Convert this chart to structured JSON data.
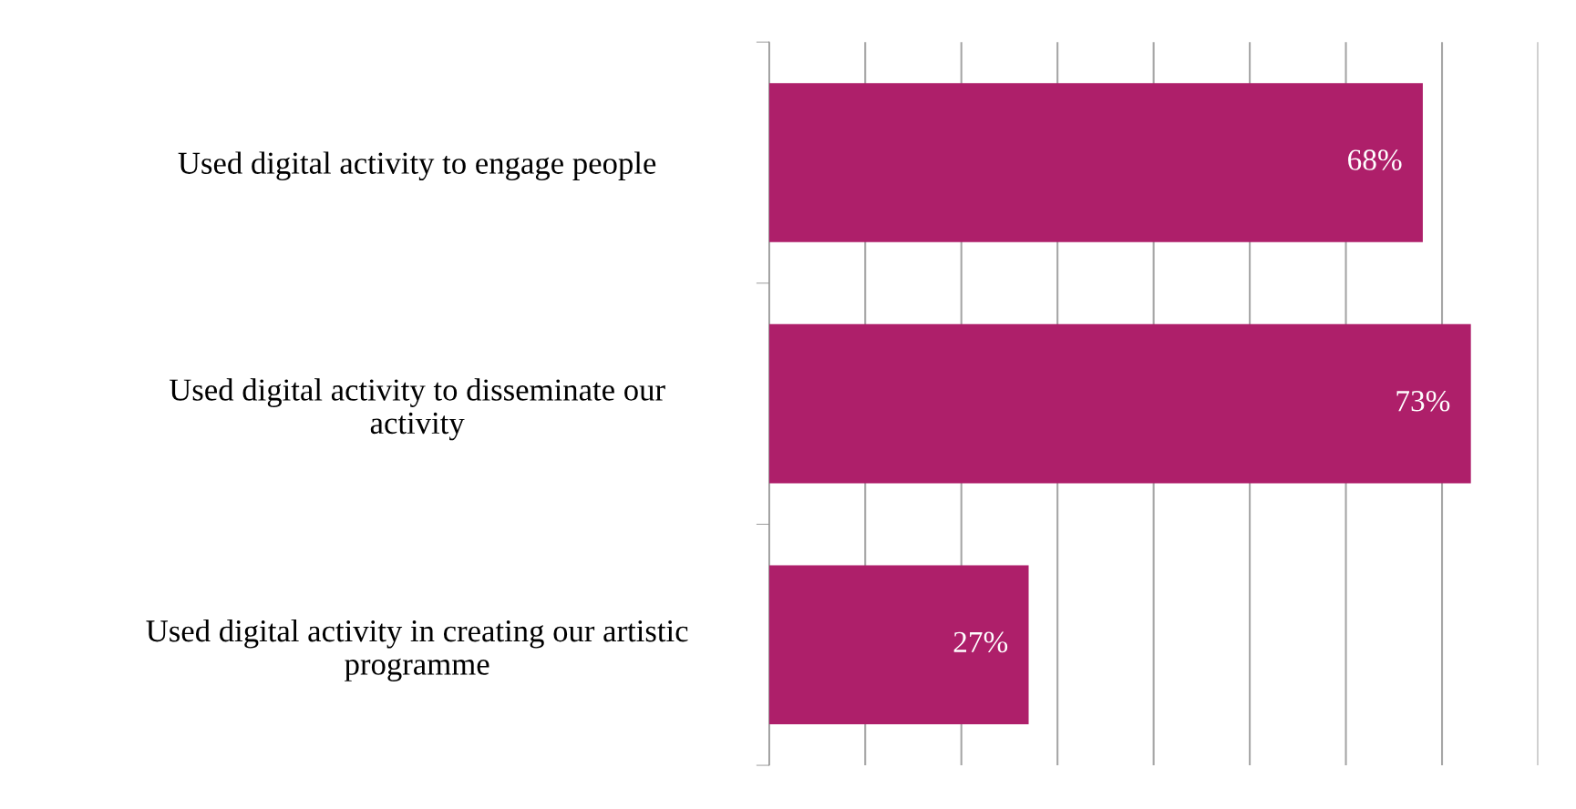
{
  "chart_data": {
    "type": "bar",
    "orientation": "horizontal",
    "categories": [
      "Used digital activity to engage people",
      "Used digital activity to disseminate our activity",
      "Used digital activity in creating our artistic programme"
    ],
    "values": [
      68,
      73,
      27
    ],
    "value_labels": [
      "68%",
      "73%",
      "27%"
    ],
    "color": "#ae1f6a",
    "xlim": [
      0,
      80
    ],
    "xticks": [
      {
        "value": 0,
        "label": null
      },
      {
        "value": 10,
        "label": null
      },
      {
        "value": 20,
        "label": null
      },
      {
        "value": 30,
        "label": null
      },
      {
        "value": 40,
        "label": null
      },
      {
        "value": 50,
        "label": null
      },
      {
        "value": 60,
        "label": null
      },
      {
        "value": 70,
        "label": null
      },
      {
        "value": 80,
        "label": null
      }
    ],
    "grid": "x",
    "tick_labels": "y"
  }
}
